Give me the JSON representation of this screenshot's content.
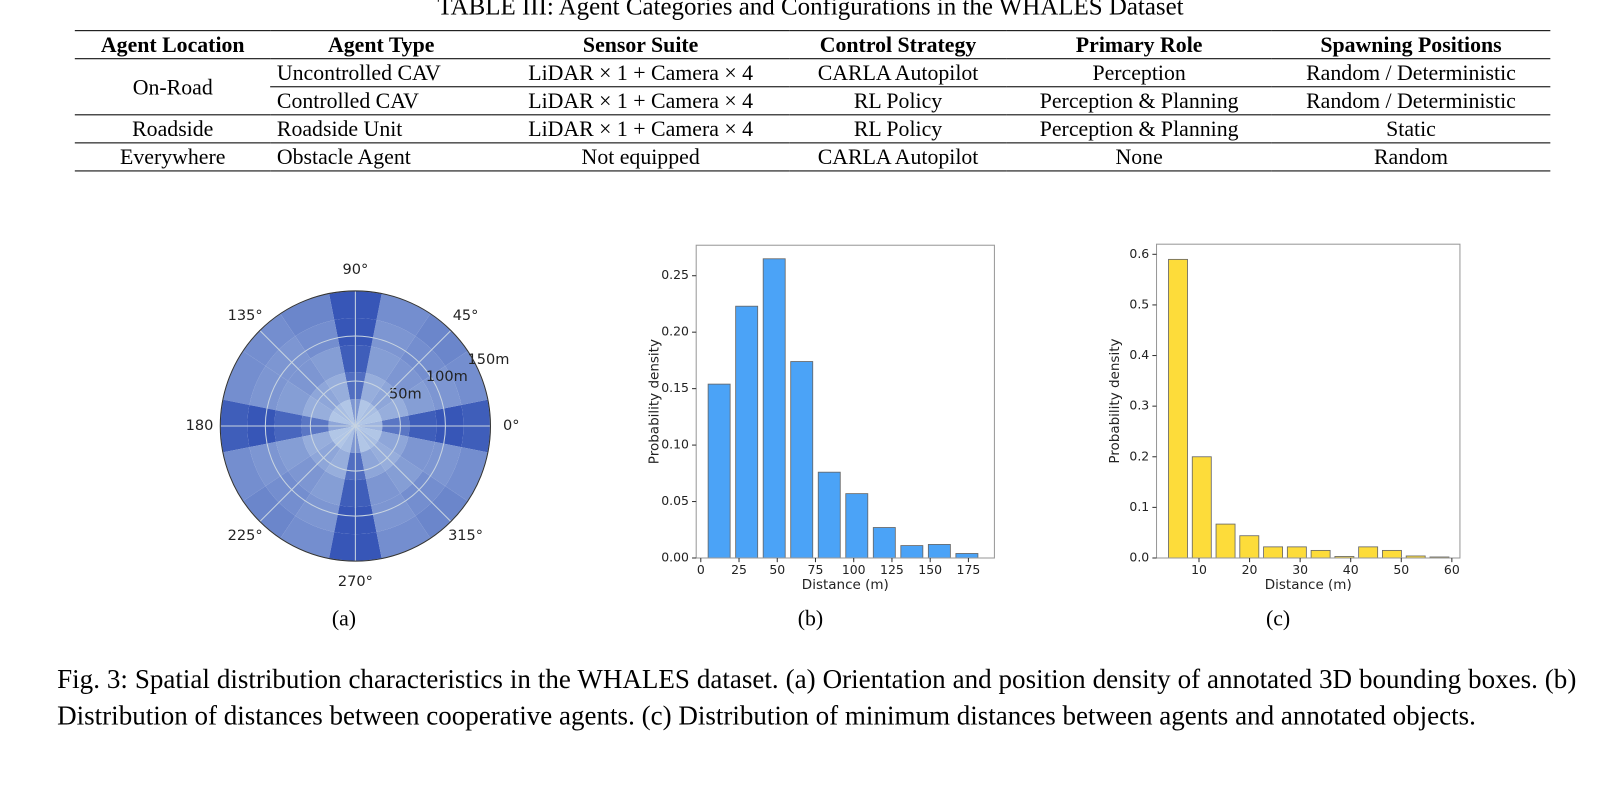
{
  "table": {
    "caption": "TABLE III: Agent Categories and Configurations in the WHALES Dataset",
    "header": [
      "Agent Location",
      "Agent Type",
      "Sensor Suite",
      "Control Strategy",
      "Primary Role",
      "Spawning Positions"
    ],
    "groups": [
      {
        "location": "On-Road",
        "agents": [
          [
            "Uncontrolled CAV",
            "LiDAR × 1 + Camera × 4",
            "CARLA Autopilot",
            "Perception",
            "Random / Deterministic"
          ],
          [
            "Controlled CAV",
            "LiDAR × 1 + Camera × 4",
            "RL Policy",
            "Perception & Planning",
            "Random / Deterministic"
          ]
        ]
      },
      {
        "location": "Roadside",
        "agents": [
          [
            "Roadside Unit",
            "LiDAR × 1 + Camera × 4",
            "RL Policy",
            "Perception & Planning",
            "Static"
          ]
        ]
      },
      {
        "location": "Everywhere",
        "agents": [
          [
            "Obstacle Agent",
            "Not equipped",
            "CARLA Autopilot",
            "None",
            "Random"
          ]
        ]
      }
    ]
  },
  "chart_data": [
    {
      "type": "polar_heatmap",
      "sublabel": "(a)",
      "cmap": [
        "#d4e6f4",
        "#2546b0"
      ],
      "theta_edges": [
        -11.25,
        11.25,
        33.75,
        56.25,
        78.75,
        101.25,
        123.75,
        146.25,
        168.75,
        191.25,
        213.75,
        236.25,
        258.75,
        281.25,
        303.75,
        326.25,
        348.75
      ],
      "r_edges": [
        0,
        30,
        60,
        90,
        120,
        150
      ],
      "values": [
        [
          0.3,
          0.2,
          0.25,
          0.2,
          0.5,
          0.2,
          0.25,
          0.2,
          0.4,
          0.2,
          0.2,
          0.25,
          0.5,
          0.2,
          0.25,
          0.2
        ],
        [
          0.7,
          0.35,
          0.4,
          0.35,
          0.75,
          0.35,
          0.4,
          0.35,
          0.7,
          0.35,
          0.4,
          0.35,
          0.75,
          0.4,
          0.35,
          0.4
        ],
        [
          0.85,
          0.45,
          0.5,
          0.45,
          0.85,
          0.45,
          0.5,
          0.45,
          0.8,
          0.45,
          0.5,
          0.45,
          0.85,
          0.5,
          0.45,
          0.5
        ],
        [
          0.9,
          0.5,
          0.55,
          0.5,
          0.9,
          0.55,
          0.5,
          0.5,
          0.9,
          0.5,
          0.55,
          0.5,
          0.9,
          0.5,
          0.55,
          0.5
        ],
        [
          0.85,
          0.55,
          0.6,
          0.55,
          0.9,
          0.6,
          0.55,
          0.55,
          0.85,
          0.55,
          0.6,
          0.55,
          0.9,
          0.55,
          0.6,
          0.55
        ]
      ],
      "rlim": [
        0,
        150
      ],
      "rticks": [
        {
          "value": 50,
          "label": "50m"
        },
        {
          "value": 100,
          "label": "100m"
        },
        {
          "value": 150,
          "label": "150m"
        }
      ],
      "thetaticks": [
        {
          "value": 0,
          "label": "0°"
        },
        {
          "value": 45,
          "label": "45°"
        },
        {
          "value": 90,
          "label": "90°"
        },
        {
          "value": 135,
          "label": "135°"
        },
        {
          "value": 180,
          "label": "180"
        },
        {
          "value": 225,
          "label": "225°"
        },
        {
          "value": 270,
          "label": "270°"
        },
        {
          "value": 315,
          "label": "315°"
        }
      ]
    },
    {
      "type": "histogram",
      "sublabel": "(b)",
      "xlabel": "Distance (m)",
      "ylabel": "Probability density",
      "color": "#4ba3f7",
      "rwidth": 0.8,
      "bins": [
        3,
        21,
        39,
        57,
        75,
        93,
        111,
        129,
        147,
        165,
        183
      ],
      "values": [
        0.154,
        0.223,
        0.265,
        0.174,
        0.076,
        0.057,
        0.027,
        0.011,
        0.012,
        0.004
      ],
      "xlim": [
        -3,
        192
      ],
      "xticks": [
        0,
        25,
        50,
        75,
        100,
        125,
        150,
        175
      ],
      "ylim": [
        0,
        0.277
      ],
      "yticks": [
        {
          "value": 0,
          "label": "0.00"
        },
        0.05,
        {
          "value": 0.1,
          "label": "0.10"
        },
        0.15,
        {
          "value": 0.2,
          "label": "0.20"
        },
        0.25
      ]
    },
    {
      "type": "histogram",
      "sublabel": "(c)",
      "xlabel": "Distance (m)",
      "ylabel": "Probability density",
      "color": "#fddc3a",
      "rwidth": 0.8,
      "bins": [
        3.5,
        8.2,
        12.9,
        17.6,
        22.3,
        27,
        31.7,
        36.4,
        41.1,
        45.8,
        50.5,
        55.2,
        59.9
      ],
      "values": [
        0.59,
        0.2,
        0.067,
        0.044,
        0.022,
        0.022,
        0.015,
        0.003,
        0.022,
        0.015,
        0.004,
        0.002
      ],
      "xlim": [
        1.6,
        61.6
      ],
      "xticks": [
        10,
        20,
        30,
        40,
        50,
        60
      ],
      "ylim": [
        0,
        0.62
      ],
      "yticks": [
        {
          "value": 0,
          "label": "0.0"
        },
        0.1,
        0.2,
        0.3,
        0.4,
        0.5,
        0.6
      ]
    }
  ],
  "figure_caption": "Fig. 3: Spatial distribution characteristics in the WHALES dataset. (a) Orientation and position density of annotated 3D bounding boxes. (b) Distribution of distances between cooperative agents. (c) Distribution of minimum distances between agents and annotated objects."
}
